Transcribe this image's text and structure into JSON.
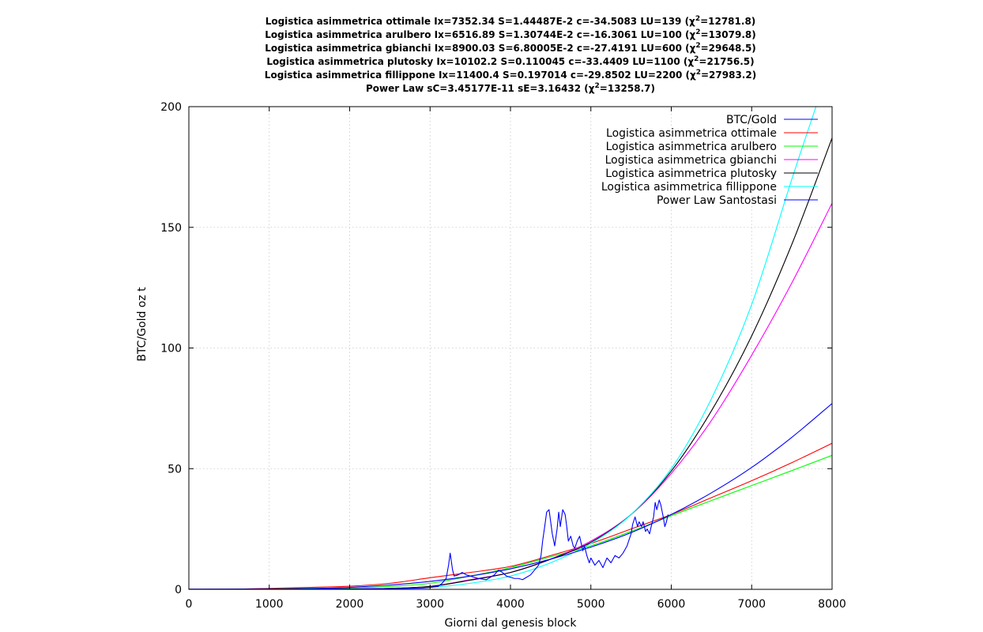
{
  "chart_data": {
    "type": "line",
    "title_lines": [
      {
        "pre": "Logistica asimmetrica ottimale Ix=7352.34 S=1.44487E-2 c=-34.5083 LU=139 (χ",
        "post": "=12781.8)"
      },
      {
        "pre": "Logistica asimmetrica arulbero Ix=6516.89 S=1.30744E-2 c=-16.3061 LU=100 (χ",
        "post": "=13079.8)"
      },
      {
        "pre": "Logistica asimmetrica gbianchi Ix=8900.03 S=6.80005E-2 c=-27.4191 LU=600 (χ",
        "post": "=29648.5)"
      },
      {
        "pre": "Logistica asimmetrica plutosky Ix=10102.2 S=0.110045 c=-33.4409 LU=1100 (χ",
        "post": "=21756.5)"
      },
      {
        "pre": "Logistica asimmetrica fillippone Ix=11400.4 S=0.197014 c=-29.8502 LU=2200 (χ",
        "post": "=27983.2)"
      },
      {
        "pre": "Power Law sC=3.45177E-11 sE=3.16432 (χ",
        "post": "=13258.7)"
      }
    ],
    "superscript": "2",
    "xlabel": "Giorni dal genesis block",
    "ylabel": "BTC/Gold oz t",
    "xlim": [
      0,
      8000
    ],
    "ylim": [
      0,
      200
    ],
    "xticks": [
      0,
      1000,
      2000,
      3000,
      4000,
      5000,
      6000,
      7000,
      8000
    ],
    "yticks": [
      0,
      50,
      100,
      150,
      200
    ],
    "grid": true,
    "legend_position": "top-right",
    "series": [
      {
        "name": "BTC/Gold",
        "color": "#0000ff",
        "kind": "data",
        "x": [
          0,
          2000,
          2500,
          2900,
          3000,
          3100,
          3150,
          3200,
          3230,
          3250,
          3280,
          3300,
          3350,
          3400,
          3450,
          3500,
          3600,
          3700,
          3800,
          3850,
          3900,
          3950,
          4000,
          4050,
          4100,
          4150,
          4200,
          4250,
          4300,
          4350,
          4380,
          4400,
          4430,
          4450,
          4480,
          4500,
          4520,
          4550,
          4580,
          4600,
          4620,
          4650,
          4680,
          4700,
          4720,
          4750,
          4780,
          4800,
          4830,
          4860,
          4880,
          4900,
          4920,
          4950,
          4980,
          5000,
          5050,
          5100,
          5150,
          5200,
          5250,
          5300,
          5350,
          5400,
          5450,
          5480,
          5500,
          5520,
          5550,
          5580,
          5600,
          5630,
          5650,
          5680,
          5700,
          5730,
          5750,
          5780,
          5800,
          5820,
          5850,
          5870,
          5900,
          5920,
          5940,
          5960
        ],
        "y": [
          0.1,
          0.2,
          0.3,
          0.5,
          0.8,
          1.2,
          2.5,
          4.5,
          10.0,
          15.0,
          8.0,
          5.5,
          6.0,
          7.0,
          6.0,
          5.5,
          4.5,
          4.0,
          6.0,
          8.0,
          7.0,
          5.5,
          5.0,
          4.5,
          4.5,
          4.0,
          5.0,
          6.0,
          8.0,
          10.0,
          14.0,
          20.0,
          27.0,
          32.0,
          33.0,
          28.0,
          23.0,
          18.0,
          25.0,
          32.0,
          26.0,
          33.0,
          31.0,
          26.0,
          20.0,
          22.0,
          18.0,
          17.0,
          20.0,
          22.0,
          19.0,
          16.0,
          18.0,
          14.0,
          11.0,
          13.0,
          10.0,
          12.0,
          9.0,
          13.0,
          11.0,
          14.0,
          13.0,
          15.0,
          18.0,
          21.0,
          23.0,
          27.0,
          30.0,
          26.0,
          28.0,
          26.0,
          28.0,
          24.0,
          25.0,
          23.0,
          26.0,
          30.0,
          36.0,
          33.0,
          37.0,
          35.0,
          30.0,
          26.0,
          28.0,
          31.0
        ]
      },
      {
        "name": "Logistica asimmetrica ottimale",
        "color": "#ff0000",
        "kind": "curve",
        "x": [
          0,
          500,
          1000,
          1500,
          2000,
          2500,
          3000,
          3500,
          4000,
          4500,
          5000,
          5500,
          6000,
          6500,
          7000,
          7500,
          8000
        ],
        "y": [
          0.0,
          0.0,
          0.4,
          0.8,
          1.3,
          2.5,
          4.8,
          7.0,
          9.5,
          14.0,
          19.0,
          25.0,
          31.0,
          38.0,
          45.0,
          52.5,
          60.5
        ]
      },
      {
        "name": "Logistica asimmetrica arulbero",
        "color": "#00ff00",
        "kind": "curve",
        "x": [
          0,
          500,
          1000,
          1500,
          2000,
          2500,
          3000,
          3500,
          4000,
          4500,
          5000,
          5500,
          6000,
          6500,
          7000,
          7500,
          8000
        ],
        "y": [
          0.0,
          0.0,
          0.2,
          0.4,
          0.6,
          1.2,
          2.5,
          5.5,
          9.0,
          13.5,
          18.0,
          24.0,
          30.5,
          36.8,
          43.0,
          49.2,
          55.5
        ]
      },
      {
        "name": "Logistica asimmetrica gbianchi",
        "color": "#ff00ff",
        "kind": "curve",
        "x": [
          0,
          500,
          1000,
          1500,
          2000,
          2500,
          3000,
          3500,
          4000,
          4500,
          5000,
          5500,
          6000,
          6500,
          7000,
          7500,
          8000
        ],
        "y": [
          0.0,
          0.0,
          0.0,
          0.0,
          0.1,
          0.4,
          1.2,
          4.0,
          7.0,
          12.5,
          20.0,
          31.0,
          48.0,
          70.0,
          97.0,
          127.0,
          160.0
        ]
      },
      {
        "name": "Logistica asimmetrica plutosky",
        "color": "#000000",
        "kind": "curve",
        "x": [
          0,
          500,
          1000,
          1500,
          2000,
          2500,
          3000,
          3500,
          4000,
          4500,
          5000,
          5500,
          6000,
          6500,
          7000,
          7500,
          8000
        ],
        "y": [
          0.0,
          0.0,
          0.0,
          0.0,
          0.1,
          0.4,
          1.2,
          3.8,
          7.0,
          12.5,
          19.5,
          31.0,
          49.0,
          74.0,
          105.0,
          143.0,
          187.0
        ]
      },
      {
        "name": "Logistica asimmetrica fillippone",
        "color": "#00ffff",
        "kind": "curve",
        "x": [
          0,
          500,
          1000,
          1500,
          2000,
          2500,
          3000,
          3500,
          4000,
          4500,
          5000,
          5500,
          6000,
          6500,
          7000,
          7500,
          7800
        ],
        "y": [
          0.0,
          0.0,
          0.0,
          0.0,
          0.0,
          0.2,
          0.8,
          2.5,
          5.5,
          11.0,
          19.0,
          31.0,
          50.0,
          79.0,
          118.0,
          170.0,
          200.0
        ]
      },
      {
        "name": "Power Law Santostasi",
        "color": "#0000ff",
        "kind": "curve",
        "x": [
          0,
          500,
          1000,
          1500,
          2000,
          2500,
          3000,
          3500,
          4000,
          4500,
          5000,
          5500,
          6000,
          6500,
          7000,
          7500,
          8000
        ],
        "y": [
          0.0,
          0.0,
          0.1,
          0.3,
          0.8,
          1.8,
          3.3,
          5.5,
          8.5,
          12.5,
          17.5,
          23.5,
          31.0,
          40.0,
          50.5,
          63.0,
          77.0
        ]
      }
    ]
  }
}
